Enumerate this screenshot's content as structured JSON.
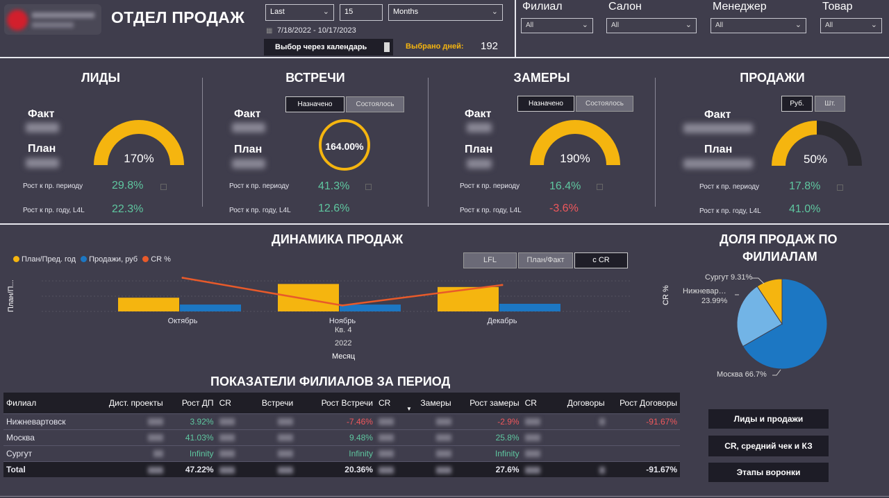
{
  "header": {
    "title": "ОТДЕЛ ПРОДАЖ",
    "period_mode": "Last",
    "period_count": "15",
    "period_unit": "Months",
    "date_range": "7/18/2022 - 10/17/2023",
    "calendar_toggle_label": "Выбор через календарь",
    "days_label": "Выбрано дней:",
    "days_value": "192"
  },
  "filters": [
    {
      "label": "Филиал",
      "value": "All"
    },
    {
      "label": "Салон",
      "value": "All"
    },
    {
      "label": "Менеджер",
      "value": "All"
    },
    {
      "label": "Товар",
      "value": "All"
    }
  ],
  "kpis": {
    "fact_label": "Факт",
    "plan_label": "План",
    "growth_prev_label": "Рост к пр. периоду",
    "growth_year_label": "Рост к пр. году, L4L",
    "leads": {
      "title": "ЛИДЫ",
      "gauge": "170%",
      "gauge_fraction": 1.0,
      "growth_prev": "29.8%",
      "growth_year": "22.3%"
    },
    "meetings": {
      "title": "ВСТРЕЧИ",
      "tab_on": "Назначено",
      "tab_off": "Состоялось",
      "gauge": "164.00%",
      "growth_prev": "41.3%",
      "growth_year": "12.6%"
    },
    "measures": {
      "title": "ЗАМЕРЫ",
      "tab_on": "Назначено",
      "tab_off": "Состоялось",
      "gauge": "190%",
      "gauge_fraction": 1.0,
      "growth_prev": "16.4%",
      "growth_year": "-3.6%"
    },
    "sales": {
      "title": "ПРОДАЖИ",
      "tab_on": "Руб.",
      "tab_off": "Шт.",
      "gauge": "50%",
      "gauge_fraction": 0.5,
      "growth_prev": "17.8%",
      "growth_year": "41.0%"
    }
  },
  "dynamics": {
    "title": "ДИНАМИКА ПРОДАЖ",
    "legend": [
      {
        "name": "План/Пред. год",
        "color": "#f5b50f"
      },
      {
        "name": "Продажи, руб",
        "color": "#1c77c3"
      },
      {
        "name": "CR %",
        "color": "#e85a2a"
      }
    ],
    "buttons": [
      "LFL",
      "План/Факт",
      "с CR"
    ],
    "y_left_label": "План/П...",
    "y_right_label": "CR %",
    "x_quarter": "Кв. 4",
    "x_year": "2022",
    "x_axis_title": "Месяц"
  },
  "chart_data": [
    {
      "type": "bar",
      "categories": [
        "Октябрь",
        "Ноябрь",
        "Декабрь"
      ],
      "series": [
        {
          "name": "План/Пред. год",
          "values": [
            0.9,
            1.8,
            1.6
          ]
        },
        {
          "name": "Продажи, руб",
          "values": [
            0.45,
            0.45,
            0.5
          ]
        },
        {
          "name": "CR %",
          "values": [
            0.28,
            0.05,
            0.22
          ]
        }
      ]
    },
    {
      "type": "pie",
      "title": "ДОЛЯ ПРОДАЖ ПО ФИЛИАЛАМ",
      "slices": [
        {
          "name": "Москва",
          "value": 66.7,
          "label": "66.7%",
          "color": "#1c77c3"
        },
        {
          "name": "Нижневар…",
          "value": 23.99,
          "label": "23.99%",
          "color": "#72b4e6"
        },
        {
          "name": "Сургут",
          "value": 9.31,
          "label": "9.31%",
          "color": "#f5b50f"
        }
      ]
    }
  ],
  "pie": {
    "title_line1": "ДОЛЯ ПРОДАЖ ПО",
    "title_line2": "ФИЛИАЛАМ",
    "surgut_label": "Сургут 9.31%",
    "nizh_label_1": "Нижневар…",
    "nizh_label_2": "23.99%",
    "moscow_label": "Москва 66.7%"
  },
  "table": {
    "title": "ПОКАЗАТЕЛИ ФИЛИАЛОВ ЗА ПЕРИОД",
    "columns": [
      "Филиал",
      "Дист. проекты",
      "Рост ДП",
      "CR",
      "Встречи",
      "Рост Встречи",
      "CR",
      "Замеры",
      "Рост замеры",
      "CR",
      "Договоры",
      "Рост Договоры"
    ],
    "rows": [
      {
        "name": "Нижневартовск",
        "rost_dp": "3.92%",
        "rost_vstr": "-7.46%",
        "rost_zam": "-2.9%",
        "rost_dog": "-91.67%"
      },
      {
        "name": "Москва",
        "rost_dp": "41.03%",
        "rost_vstr": "9.48%",
        "rost_zam": "25.8%",
        "rost_dog": ""
      },
      {
        "name": "Сургут",
        "rost_dp": "Infinity",
        "rost_vstr": "Infinity",
        "rost_zam": "Infinity",
        "rost_dog": ""
      },
      {
        "name": "Total",
        "rost_dp": "47.22%",
        "rost_vstr": "20.36%",
        "rost_zam": "27.6%",
        "rost_dog": "-91.67%"
      }
    ]
  },
  "nav": {
    "btn1": "Лиды и продажи",
    "btn2": "CR, средний чек и КЗ",
    "btn3": "Этапы воронки"
  }
}
